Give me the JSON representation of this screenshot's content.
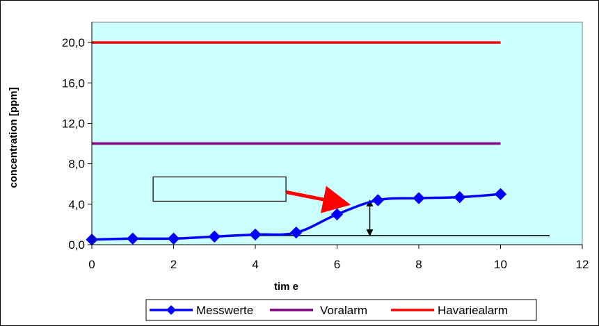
{
  "chart_data": {
    "type": "line",
    "xlabel": "tim e",
    "ylabel": "concentration [ppm]",
    "xlim": [
      0,
      12
    ],
    "ylim": [
      0,
      22
    ],
    "x_ticks": [
      "0",
      "2",
      "4",
      "6",
      "8",
      "10",
      "12"
    ],
    "y_ticks": [
      "0,0",
      "4,0",
      "8,0",
      "12,0",
      "16,0",
      "20,0"
    ],
    "x_tick_values": [
      0,
      2,
      4,
      6,
      8,
      10,
      12
    ],
    "y_tick_values": [
      0,
      4,
      8,
      12,
      16,
      20
    ],
    "grid": false,
    "plot_background": "#ccffff",
    "legend_position": "bottom",
    "series": [
      {
        "name": "Messwerte",
        "color": "#0000ff",
        "marker": "diamond",
        "smooth": true,
        "x": [
          0,
          1,
          2,
          3,
          4,
          5,
          6,
          7,
          8,
          9,
          10
        ],
        "y": [
          0.5,
          0.6,
          0.6,
          0.8,
          1.0,
          1.2,
          3.0,
          4.4,
          4.6,
          4.7,
          5.0
        ]
      },
      {
        "name": "Voralarm",
        "color": "#800080",
        "marker": "none",
        "x": [
          0,
          10
        ],
        "y": [
          10,
          10
        ]
      },
      {
        "name": "Havariealarm",
        "color": "#ff0000",
        "marker": "none",
        "x": [
          0,
          10
        ],
        "y": [
          20,
          20
        ]
      }
    ],
    "annotations": {
      "baseline": {
        "x": [
          3.7,
          11.2
        ],
        "y": 0.9,
        "color": "#000000"
      },
      "double_arrow": {
        "x": 6.8,
        "y": [
          0.9,
          4.4
        ],
        "color": "#000000"
      },
      "empty_box": {
        "x": [
          1.5,
          4.75
        ],
        "y": [
          4.3,
          6.7
        ]
      },
      "red_arrow": {
        "from": [
          4.75,
          5.2
        ],
        "to": [
          6.25,
          4.0
        ],
        "color": "#ff0000"
      }
    }
  }
}
